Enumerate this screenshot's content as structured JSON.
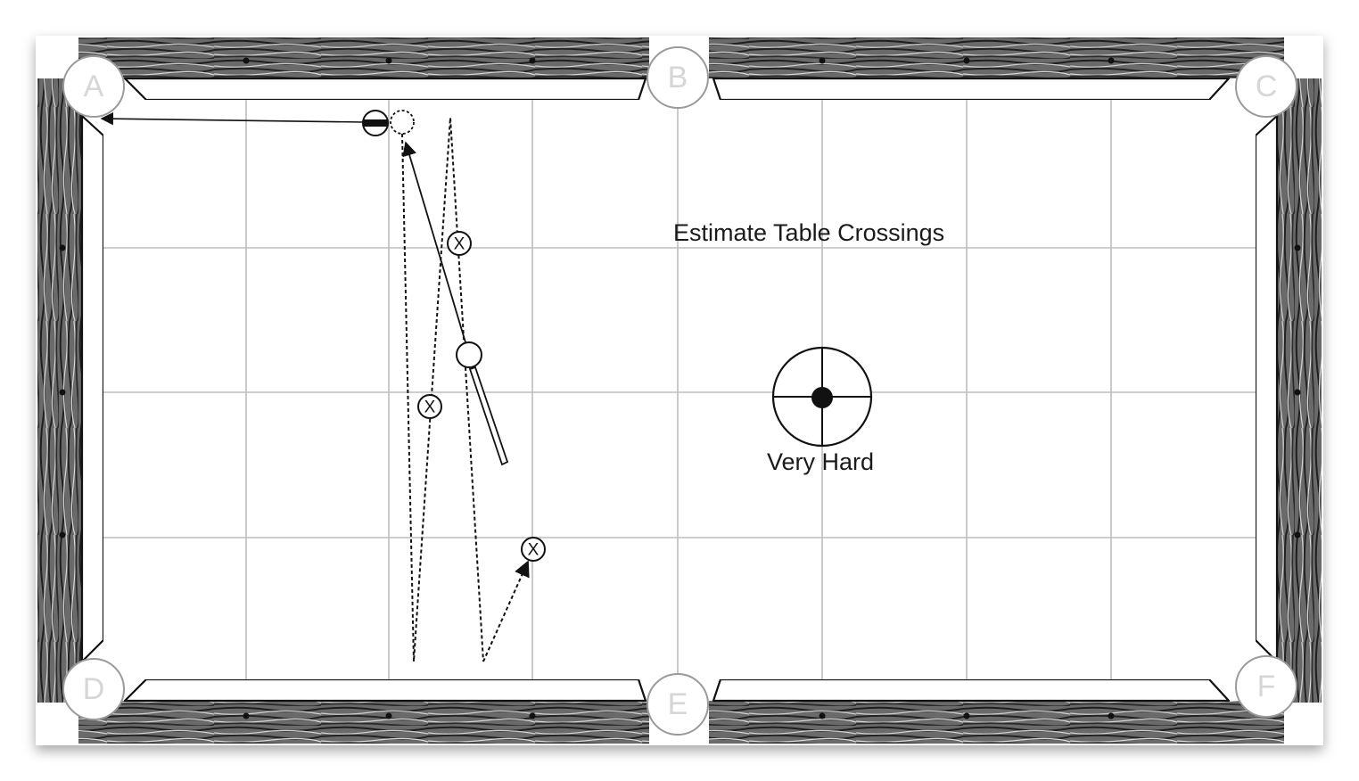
{
  "diagram": {
    "title": "Estimate Table Crossings",
    "difficulty_label": "Very Hard",
    "pockets": {
      "a": "A",
      "b": "B",
      "c": "C",
      "d": "D",
      "e": "E",
      "f": "F"
    },
    "target_mark": "X",
    "colors": {
      "rail_dark": "#3a3a3a",
      "rail_light": "#8a8a8a",
      "cloth": "#ffffff",
      "grid": "#bdbdbd",
      "ink": "#111111",
      "pocket_label": "#d6d6d6"
    }
  }
}
